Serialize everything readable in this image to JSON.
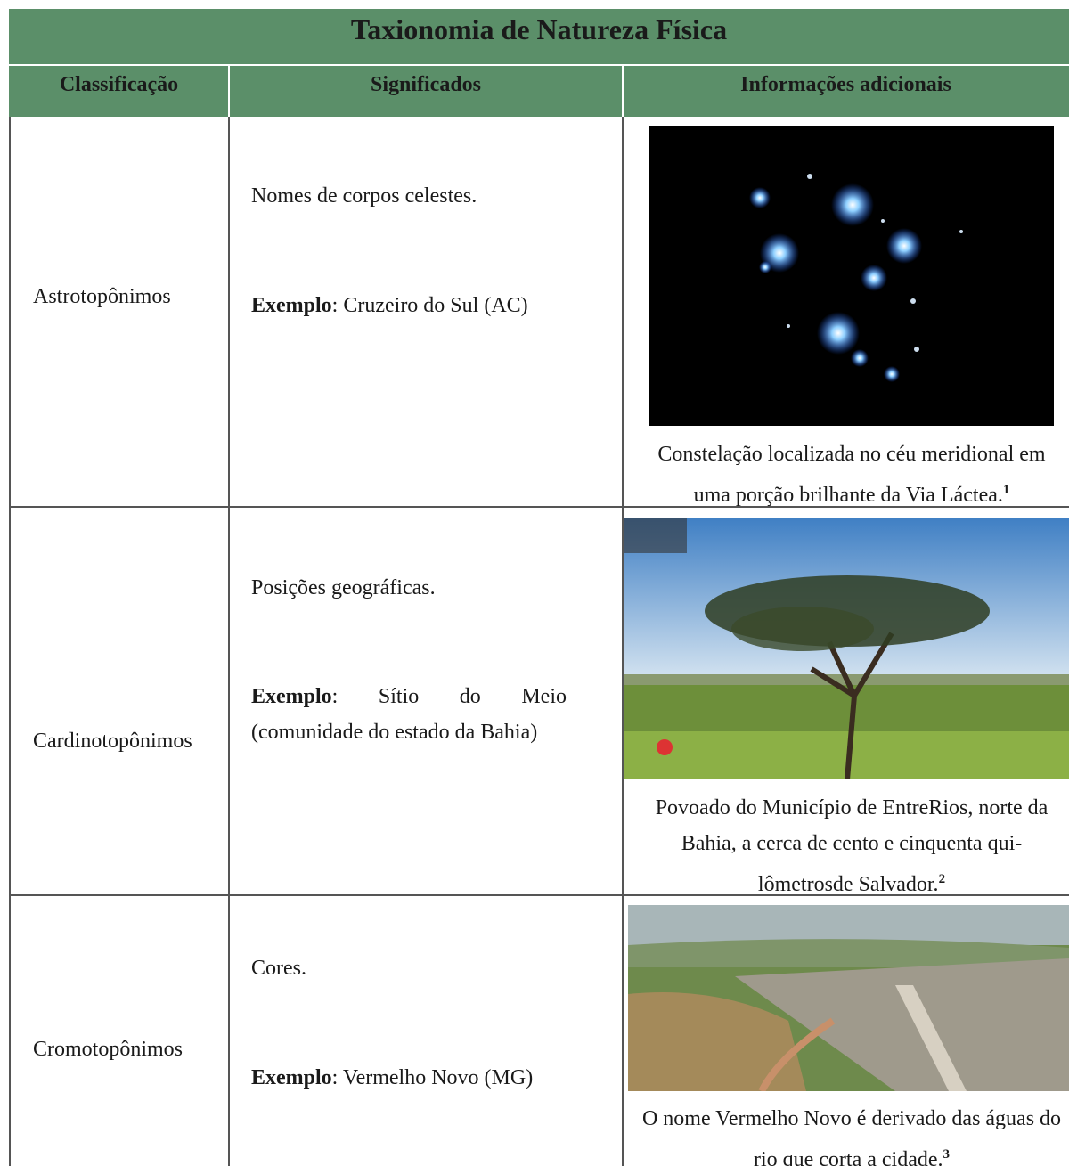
{
  "title": "Taxionomia de Natureza Física",
  "headers": [
    "Classificação",
    "Significados",
    "Informações adicionais"
  ],
  "rows": [
    {
      "classification": "Astrotopônimos",
      "meaning": "Nomes de corpos celestes.",
      "example_label": "Exemplo",
      "example_text": ": Cruzeiro do Sul (AC)",
      "caption": "Constelação localizada no céu meridional em uma porção brilhante da Via Láctea.",
      "footnote": "1"
    },
    {
      "classification": "Cardinotopônimos",
      "meaning": "Posições geográficas.",
      "example_label": "Exemplo",
      "example_text": ": Sítio do Meio (comunidade do estado da Bahia)",
      "caption": "Povoado do Município de EntreRios, norte da Bahia, a cerca de cento e cinquenta qui-lômetrosde Salvador.",
      "footnote": "2"
    },
    {
      "classification": "Cromotopônimos",
      "meaning": "Cores.",
      "example_label": "Exemplo",
      "example_text": ": Vermelho Novo (MG)",
      "caption": "O nome Vermelho Novo é derivado das águas do rio que corta a cidade.",
      "footnote": "3"
    }
  ]
}
